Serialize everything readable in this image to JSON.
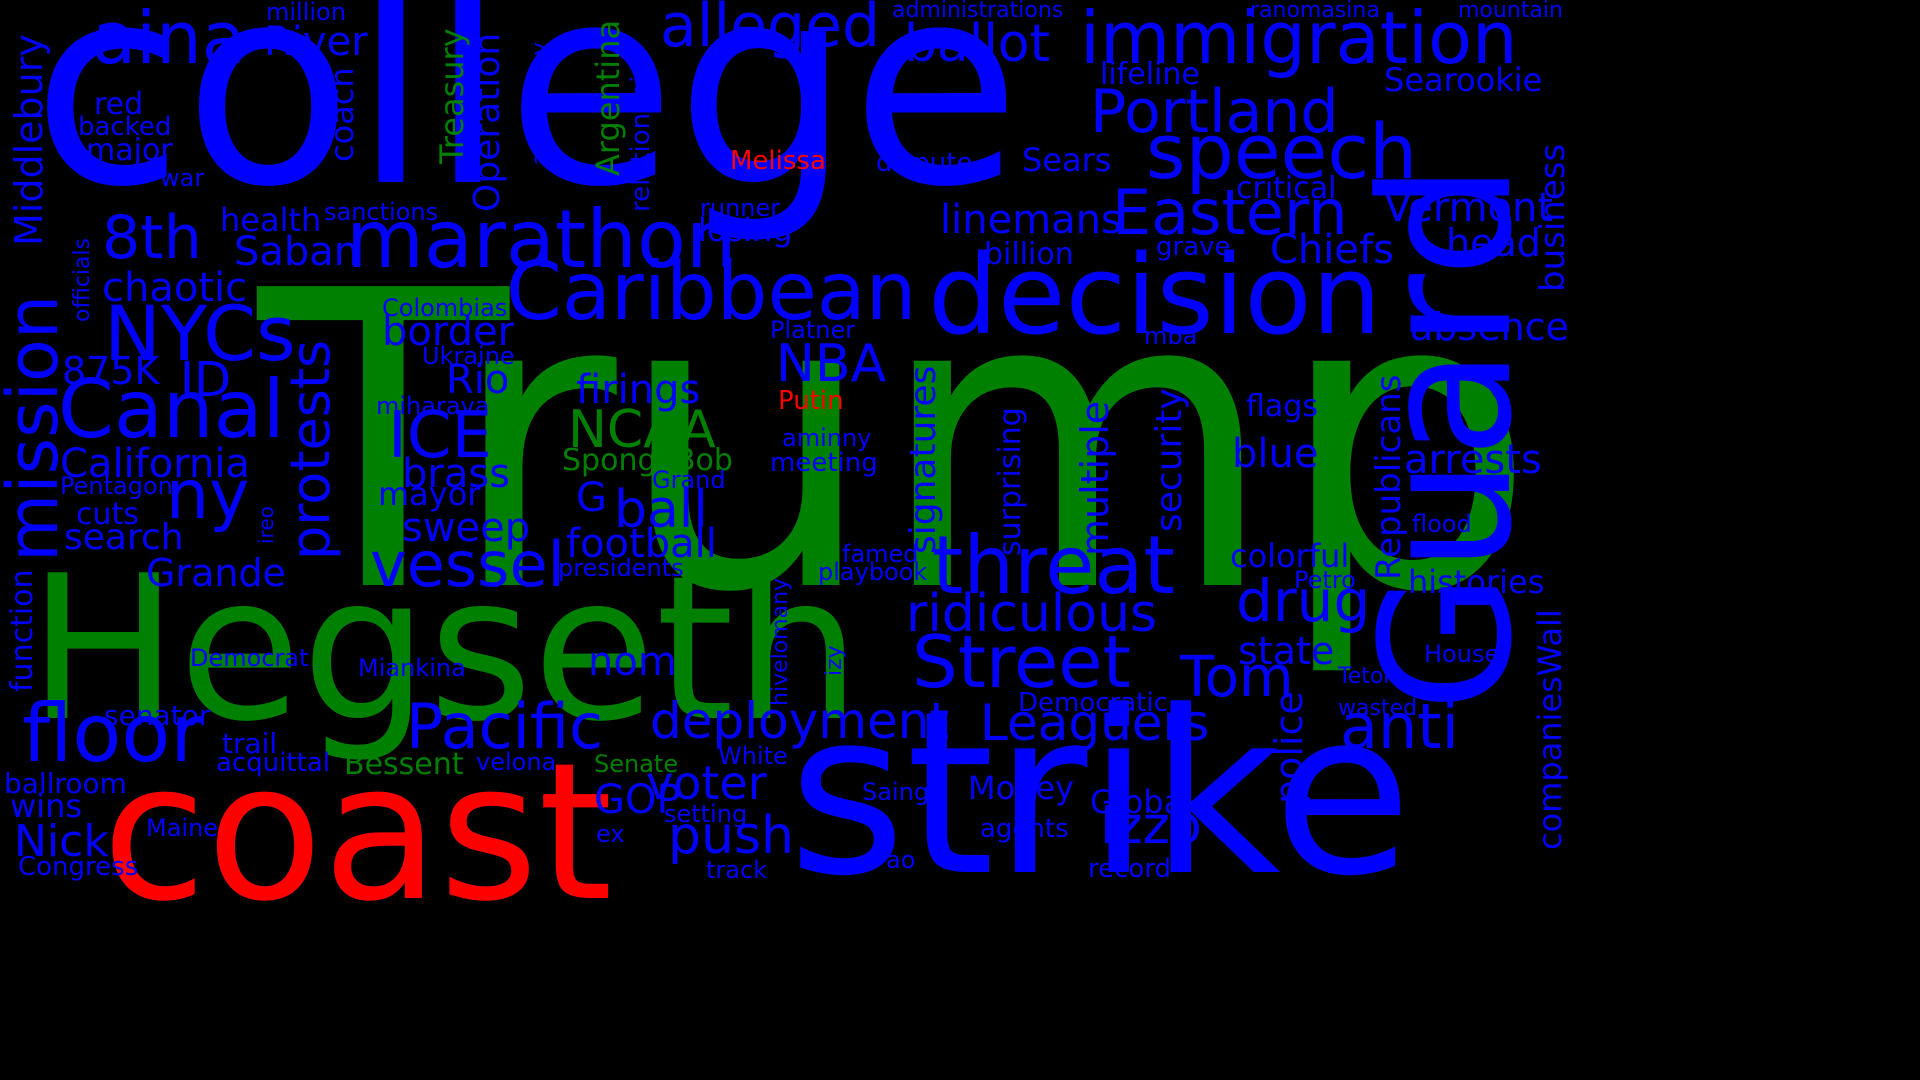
{
  "palette": {
    "blue": "#0000ff",
    "green": "#008000",
    "red": "#ff0000"
  },
  "words": [
    {
      "text": "Trump",
      "color": "green"
    },
    {
      "text": "college",
      "color": "blue"
    },
    {
      "text": "Hegseth",
      "color": "green"
    },
    {
      "text": "strike",
      "color": "blue"
    },
    {
      "text": "coast",
      "color": "red"
    },
    {
      "text": "Guard",
      "color": "blue"
    },
    {
      "text": "decision",
      "color": "blue"
    },
    {
      "text": "immigration",
      "color": "blue"
    },
    {
      "text": "marathon",
      "color": "blue"
    },
    {
      "text": "Caribbean",
      "color": "blue"
    },
    {
      "text": "speech",
      "color": "blue"
    },
    {
      "text": "aina",
      "color": "blue"
    },
    {
      "text": "alleged",
      "color": "blue"
    },
    {
      "text": "threat",
      "color": "blue"
    },
    {
      "text": "Street",
      "color": "blue"
    },
    {
      "text": "Portland",
      "color": "blue"
    },
    {
      "text": "Eastern",
      "color": "blue"
    },
    {
      "text": "floor",
      "color": "blue"
    },
    {
      "text": "Canal",
      "color": "blue"
    },
    {
      "text": "mission",
      "color": "blue"
    },
    {
      "text": "NYCs",
      "color": "blue"
    },
    {
      "text": "ballot",
      "color": "blue"
    },
    {
      "text": "Pacific",
      "color": "blue"
    },
    {
      "text": "deployment",
      "color": "blue"
    },
    {
      "text": "Leaguers",
      "color": "blue"
    },
    {
      "text": "anti",
      "color": "blue"
    },
    {
      "text": "vessel",
      "color": "blue"
    },
    {
      "text": "ridiculous",
      "color": "blue"
    },
    {
      "text": "drug",
      "color": "blue"
    },
    {
      "text": "Izzo",
      "color": "blue"
    },
    {
      "text": "push",
      "color": "blue"
    },
    {
      "text": "voter",
      "color": "blue"
    },
    {
      "text": "8th",
      "color": "blue"
    },
    {
      "text": "ny",
      "color": "blue"
    },
    {
      "text": "ICE",
      "color": "blue"
    },
    {
      "text": "NBA",
      "color": "blue"
    },
    {
      "text": "protests",
      "color": "blue"
    },
    {
      "text": "Tom",
      "color": "blue"
    },
    {
      "text": "linemans",
      "color": "blue"
    },
    {
      "text": "NCAA",
      "color": "green"
    },
    {
      "text": "ball",
      "color": "blue"
    },
    {
      "text": "football",
      "color": "blue"
    },
    {
      "text": "California",
      "color": "blue"
    },
    {
      "text": "Nick",
      "color": "blue"
    },
    {
      "text": "Chiefs",
      "color": "blue"
    },
    {
      "text": "Vermont",
      "color": "blue"
    },
    {
      "text": "Searookie",
      "color": "blue"
    },
    {
      "text": "head",
      "color": "blue"
    },
    {
      "text": "absence",
      "color": "blue"
    },
    {
      "text": "arrests",
      "color": "blue"
    },
    {
      "text": "histories",
      "color": "blue"
    },
    {
      "text": "colorful",
      "color": "blue"
    },
    {
      "text": "state",
      "color": "blue"
    },
    {
      "text": "blue",
      "color": "blue"
    },
    {
      "text": "flags",
      "color": "blue"
    },
    {
      "text": "Money",
      "color": "blue"
    },
    {
      "text": "Global",
      "color": "blue"
    },
    {
      "text": "GOP",
      "color": "blue"
    },
    {
      "text": "Rio",
      "color": "blue"
    },
    {
      "text": "border",
      "color": "blue"
    },
    {
      "text": "brass",
      "color": "blue"
    },
    {
      "text": "mayor",
      "color": "blue"
    },
    {
      "text": "sweep",
      "color": "blue"
    },
    {
      "text": "search",
      "color": "blue"
    },
    {
      "text": "Grande",
      "color": "blue"
    },
    {
      "text": "cuts",
      "color": "blue"
    },
    {
      "text": "ID",
      "color": "blue"
    },
    {
      "text": "875K",
      "color": "blue"
    },
    {
      "text": "chaotic",
      "color": "blue"
    },
    {
      "text": "Saban",
      "color": "blue"
    },
    {
      "text": "health",
      "color": "blue"
    },
    {
      "text": "major",
      "color": "blue"
    },
    {
      "text": "red",
      "color": "blue"
    },
    {
      "text": "backed",
      "color": "blue"
    },
    {
      "text": "war",
      "color": "blue"
    },
    {
      "text": "River",
      "color": "blue"
    },
    {
      "text": "million",
      "color": "blue"
    },
    {
      "text": "coach",
      "color": "blue"
    },
    {
      "text": "Middlebury",
      "color": "blue"
    },
    {
      "text": "officials",
      "color": "blue"
    },
    {
      "text": "function",
      "color": "blue"
    },
    {
      "text": "senator",
      "color": "blue"
    },
    {
      "text": "trail",
      "color": "blue"
    },
    {
      "text": "acquittal",
      "color": "blue"
    },
    {
      "text": "ballroom",
      "color": "blue"
    },
    {
      "text": "wins",
      "color": "blue"
    },
    {
      "text": "Congress",
      "color": "blue"
    },
    {
      "text": "Maine",
      "color": "blue"
    },
    {
      "text": "Democrat",
      "color": "blue"
    },
    {
      "text": "Miankina",
      "color": "blue"
    },
    {
      "text": "Pentagon",
      "color": "blue"
    },
    {
      "text": "ireo",
      "color": "blue"
    },
    {
      "text": "Bessent",
      "color": "green"
    },
    {
      "text": "velona",
      "color": "blue"
    },
    {
      "text": "Senate",
      "color": "green"
    },
    {
      "text": "White",
      "color": "blue"
    },
    {
      "text": "setting",
      "color": "blue"
    },
    {
      "text": "ex",
      "color": "blue"
    },
    {
      "text": "track",
      "color": "blue"
    },
    {
      "text": "ao",
      "color": "blue"
    },
    {
      "text": "Saingy",
      "color": "blue"
    },
    {
      "text": "agents",
      "color": "blue"
    },
    {
      "text": "record",
      "color": "blue"
    },
    {
      "text": "nom",
      "color": "blue"
    },
    {
      "text": "G",
      "color": "blue"
    },
    {
      "text": "SpongeBob",
      "color": "green"
    },
    {
      "text": "Grand",
      "color": "blue"
    },
    {
      "text": "presidents",
      "color": "blue"
    },
    {
      "text": "famed",
      "color": "blue"
    },
    {
      "text": "playbook",
      "color": "blue"
    },
    {
      "text": "meeting",
      "color": "blue"
    },
    {
      "text": "aminny",
      "color": "blue"
    },
    {
      "text": "Putin",
      "color": "red"
    },
    {
      "text": "Platner",
      "color": "blue"
    },
    {
      "text": "miharava",
      "color": "blue"
    },
    {
      "text": "Ukraine",
      "color": "blue"
    },
    {
      "text": "Colombias",
      "color": "blue"
    },
    {
      "text": "sanctions",
      "color": "blue"
    },
    {
      "text": "firings",
      "color": "blue"
    },
    {
      "text": "losing",
      "color": "blue"
    },
    {
      "text": "runner",
      "color": "blue"
    },
    {
      "text": "Melissa",
      "color": "red"
    },
    {
      "text": "dispute",
      "color": "blue"
    },
    {
      "text": "Sears",
      "color": "blue"
    },
    {
      "text": "critical",
      "color": "blue"
    },
    {
      "text": "billion",
      "color": "blue"
    },
    {
      "text": "grave",
      "color": "blue"
    },
    {
      "text": "lifeline",
      "color": "blue"
    },
    {
      "text": "administrations",
      "color": "blue"
    },
    {
      "text": "ranomasina",
      "color": "blue"
    },
    {
      "text": "mountain",
      "color": "blue"
    },
    {
      "text": "mba",
      "color": "blue"
    },
    {
      "text": "Democratic",
      "color": "blue"
    },
    {
      "text": "wasted",
      "color": "blue"
    },
    {
      "text": "Teton",
      "color": "blue"
    },
    {
      "text": "House",
      "color": "blue"
    },
    {
      "text": "Petro",
      "color": "blue"
    },
    {
      "text": "flood",
      "color": "blue"
    },
    {
      "text": "Operation",
      "color": "blue"
    },
    {
      "text": "Treasury",
      "color": "green"
    },
    {
      "text": "Argentina",
      "color": "green"
    },
    {
      "text": "relationship",
      "color": "blue"
    },
    {
      "text": "ankehitriny",
      "color": "blue"
    },
    {
      "text": "signatures",
      "color": "blue"
    },
    {
      "text": "surprising",
      "color": "blue"
    },
    {
      "text": "multiple",
      "color": "blue"
    },
    {
      "text": "security",
      "color": "blue"
    },
    {
      "text": "police",
      "color": "blue"
    },
    {
      "text": "Republicans",
      "color": "blue"
    },
    {
      "text": "business",
      "color": "blue"
    },
    {
      "text": "companiesWall",
      "color": "blue"
    },
    {
      "text": "hivelomany",
      "color": "blue"
    },
    {
      "text": "izy",
      "color": "blue"
    }
  ]
}
